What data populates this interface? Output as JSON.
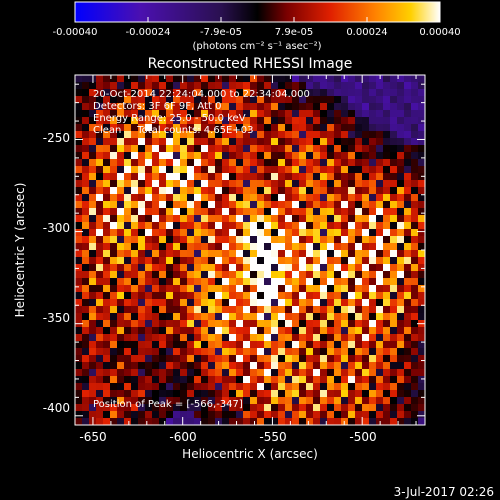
{
  "colorbar": {
    "ticks": [
      "-0.00040",
      "-0.00024",
      "-7.9e-05",
      "7.9e-05",
      "0.00024",
      "0.00040"
    ],
    "unit_label": "(photons cm⁻² s⁻¹ asec⁻²)",
    "range": [
      -0.0004,
      0.0004
    ],
    "colors": [
      "#0000ff",
      "#4b10b0",
      "#2a1050",
      "#000000",
      "#7a0000",
      "#e02000",
      "#ff8000",
      "#ffd000",
      "#ffffff"
    ]
  },
  "chart_data": {
    "type": "heatmap",
    "title": "Reconstructed RHESSI Image",
    "xlabel": "Heliocentric X (arcsec)",
    "ylabel": "Heliocentric Y (arcsec)",
    "xlim": [
      -660,
      -465
    ],
    "ylim": [
      -405,
      -215
    ],
    "x_ticks": [
      -650,
      -600,
      -550,
      -500
    ],
    "y_ticks": [
      -250,
      -300,
      -350,
      -400
    ],
    "annotations": [
      "20-Oct-2014 22:24:04.000 to 22:34:04.000",
      "Detectors: 3F 6F 9F, Att 0",
      "Energy Range: 25.0 - 50.0 keV",
      "Clean     Total counts: 4.65E+03"
    ],
    "peak_label": "Position of Peak = [-566,-347]",
    "peak": [
      -566,
      -347
    ]
  },
  "footer": {
    "date": "3-Jul-2017 02:26"
  }
}
